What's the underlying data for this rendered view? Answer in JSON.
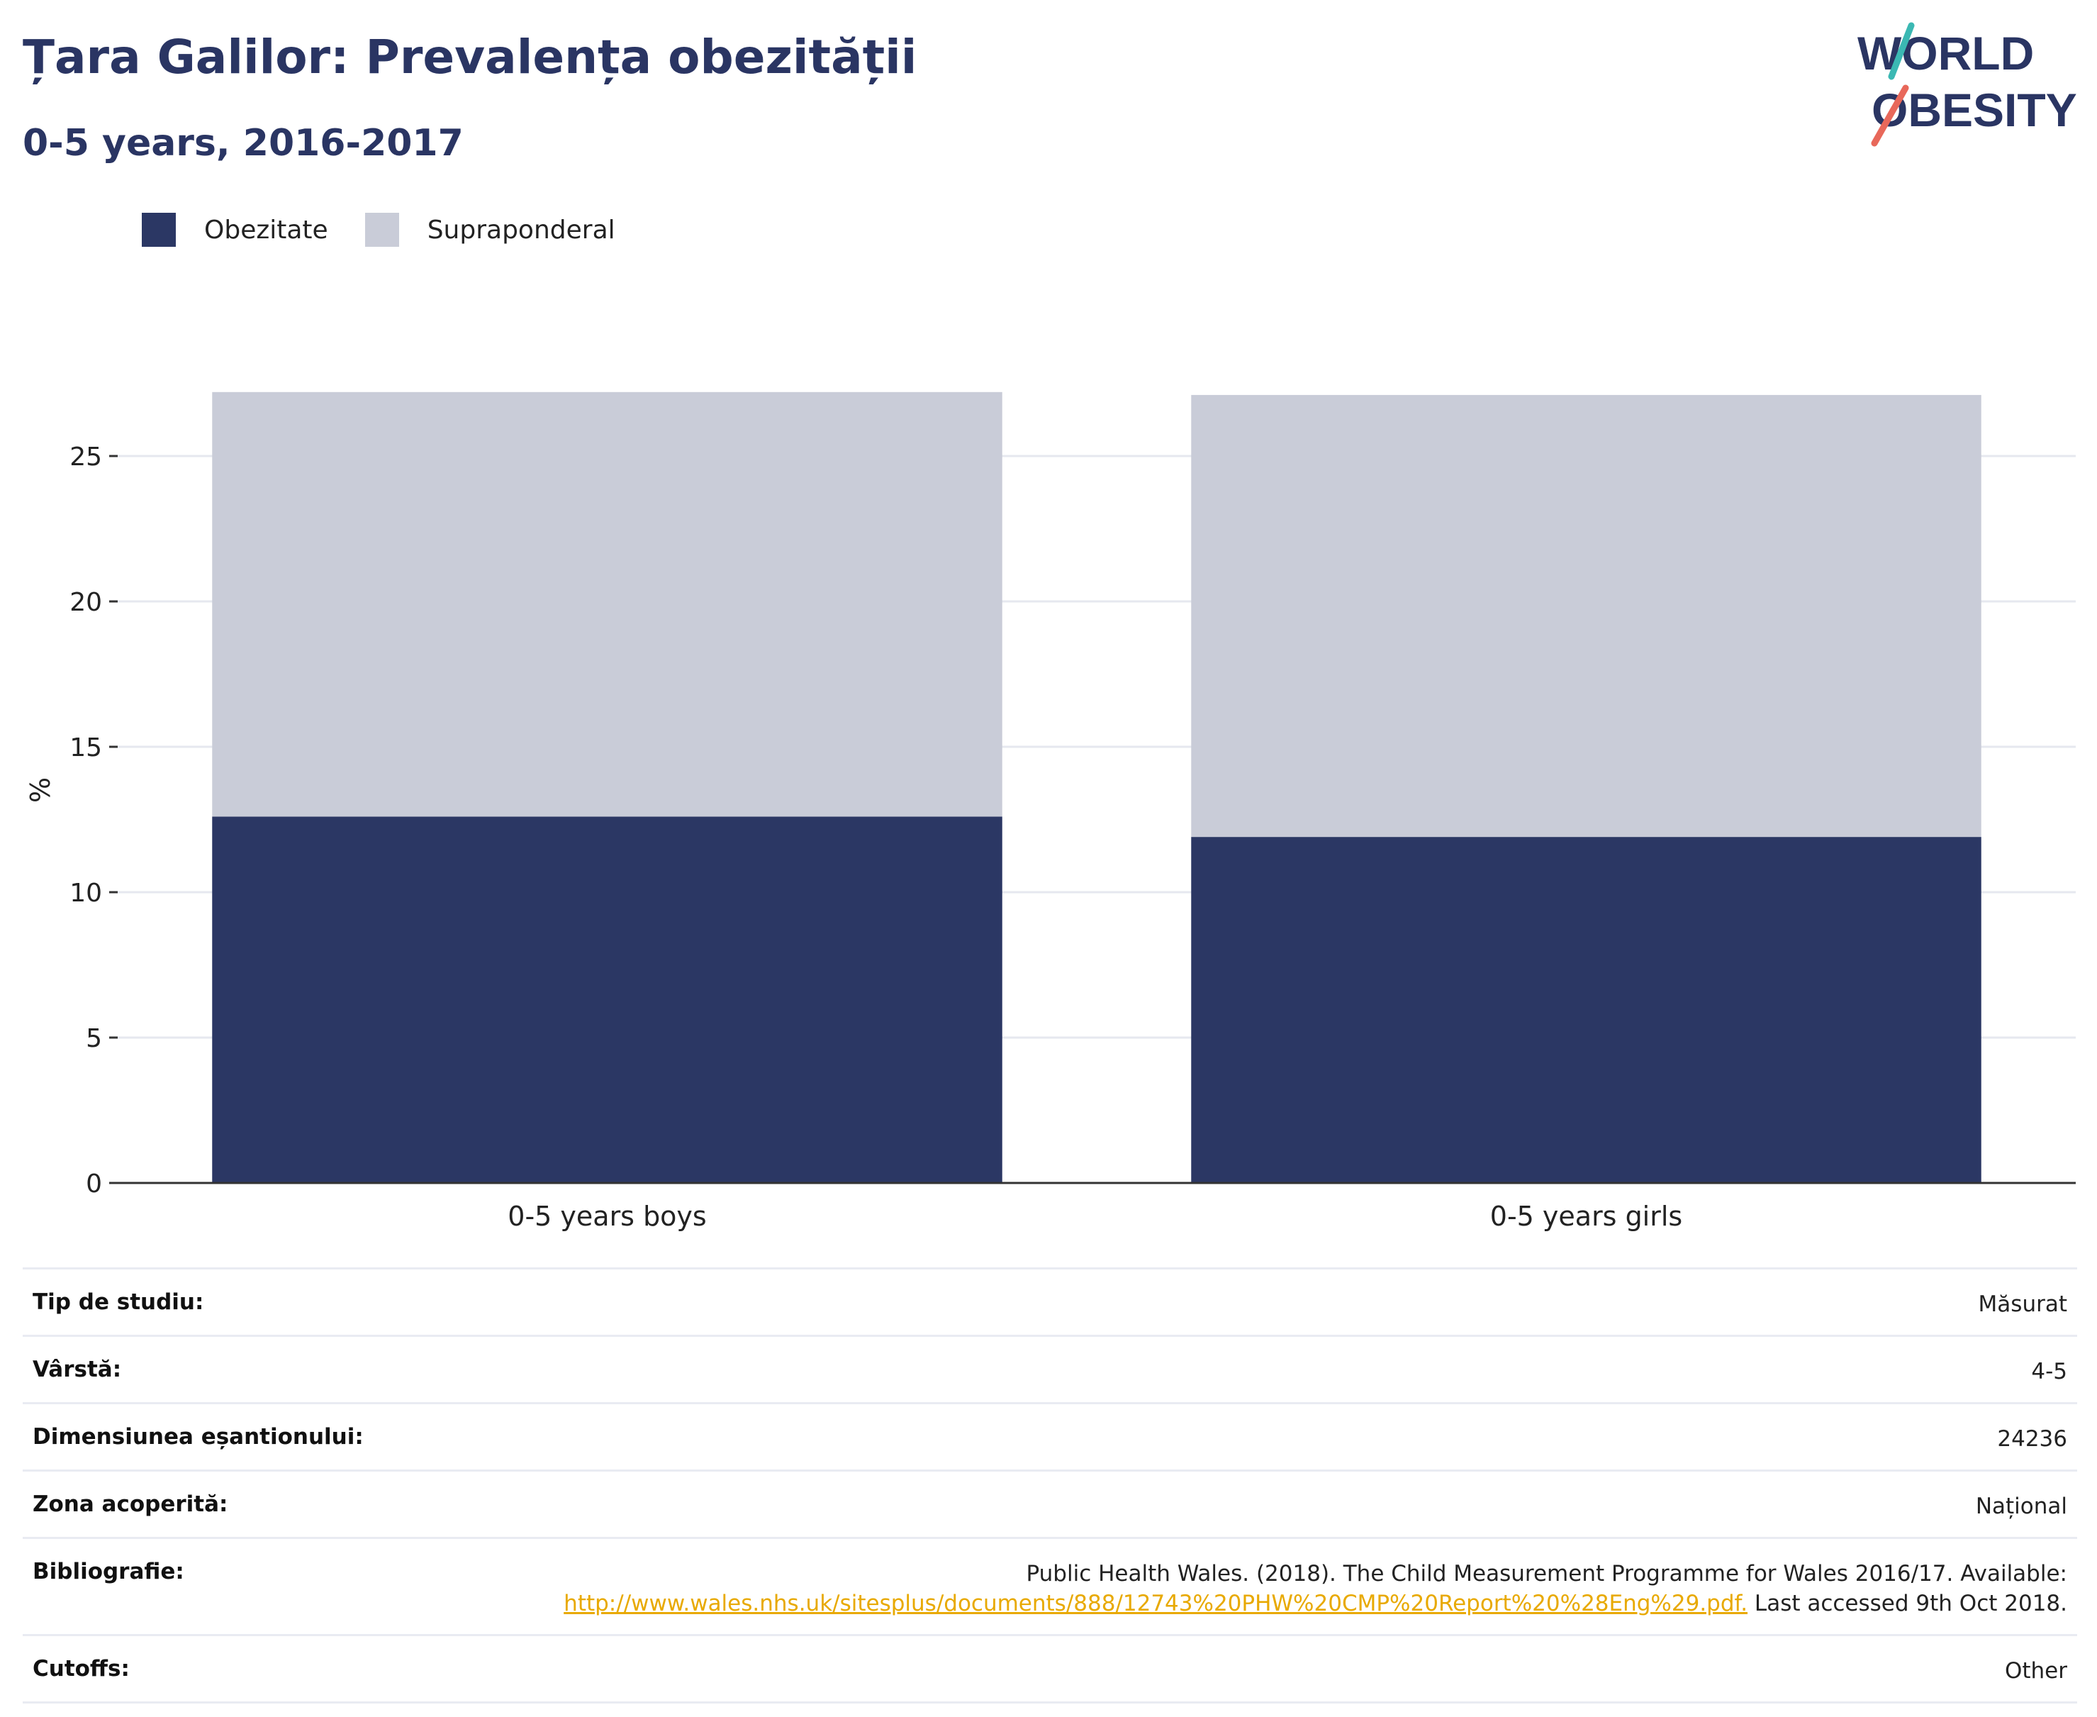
{
  "header": {
    "title": "Țara Galilor: Prevalența obezității",
    "subtitle": "0-5 years, 2016-2017"
  },
  "logo": {
    "line1": "WORLD",
    "line2": "OBESITY",
    "colors": {
      "text": "#2a3563",
      "accent_teal": "#3bb8b3",
      "accent_coral": "#e8685a"
    }
  },
  "legend": [
    {
      "label": "Obezitate",
      "color": "#2b3764"
    },
    {
      "label": "Supraponderal",
      "color": "#c9ccd8"
    }
  ],
  "chart_data": {
    "type": "bar",
    "stacked": true,
    "categories": [
      "0-5 years boys",
      "0-5 years girls"
    ],
    "series": [
      {
        "name": "Obezitate",
        "color": "#2b3764",
        "values": [
          12.6,
          11.9
        ]
      },
      {
        "name": "Supraponderal",
        "color": "#c9ccd8",
        "values": [
          14.6,
          15.2
        ]
      }
    ],
    "ylabel": "%",
    "xlabel": "",
    "ylim": [
      0,
      28
    ],
    "yticks": [
      0,
      5,
      10,
      15,
      20,
      25
    ],
    "grid": true,
    "legend_position": "top-left"
  },
  "info": {
    "rows": [
      {
        "label": "Tip de studiu:",
        "value": "Măsurat"
      },
      {
        "label": "Vârstă:",
        "value": "4-5"
      },
      {
        "label": "Dimensiunea eșantionului:",
        "value": "24236"
      },
      {
        "label": "Zona acoperită:",
        "value": "Național"
      }
    ],
    "bibliography": {
      "label": "Bibliografie:",
      "text_before": "Public Health Wales. (2018). The Child Measurement Programme for Wales 2016/17. Available:",
      "link": "http://www.wales.nhs.uk/sitesplus/documents/888/12743%20PHW%20CMP%20Report%20%28Eng%29.pdf.",
      "text_after": "Last accessed 9th Oct 2018."
    },
    "cutoffs": {
      "label": "Cutoffs:",
      "value": "Other"
    }
  }
}
